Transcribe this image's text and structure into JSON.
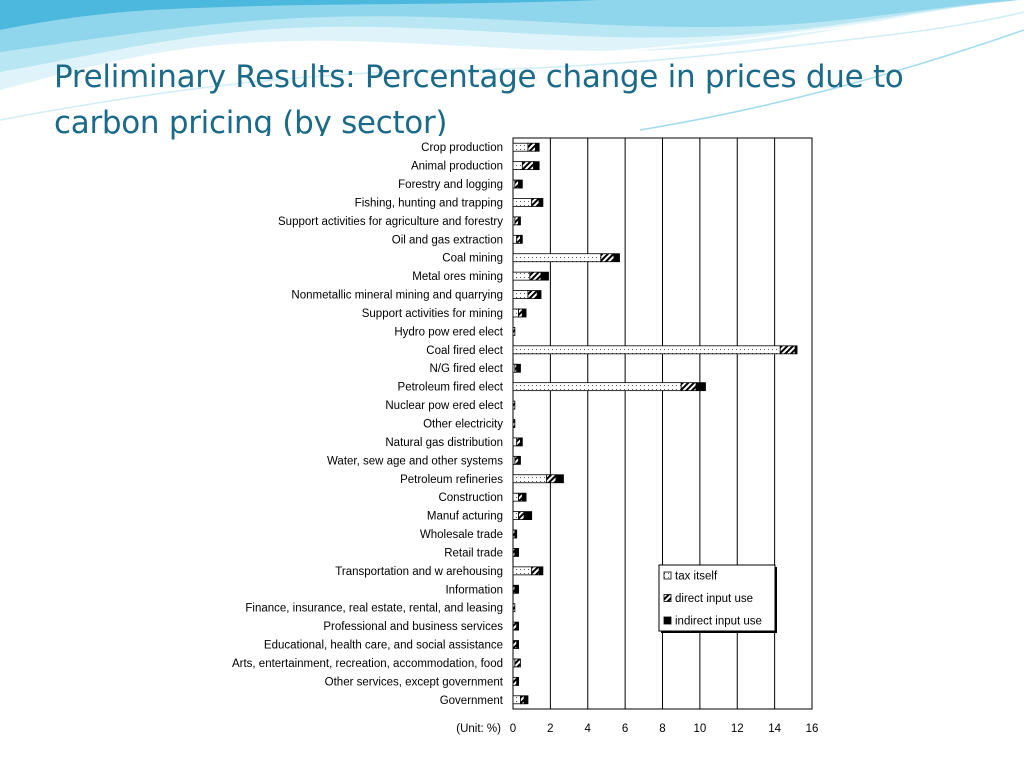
{
  "slide": {
    "title": "Preliminary Results: Percentage change in prices due to carbon pricing  (by sector)"
  },
  "colors": {
    "title": "#1c6a8a",
    "wave_light": "#cfeef6",
    "wave_mid": "#7fcfe6",
    "wave_dark": "#2aa5cf"
  },
  "chart_data": {
    "type": "bar",
    "orientation": "horizontal",
    "stacked": true,
    "title": "",
    "xlabel": "",
    "ylabel": "",
    "unit_label": "(Unit: %)",
    "xlim": [
      0,
      16
    ],
    "x_ticks": [
      0,
      2,
      4,
      6,
      8,
      10,
      12,
      14,
      16
    ],
    "grid": "vertical",
    "legend_position": "bottom-right",
    "categories": [
      "Crop production",
      "Animal production",
      "Forestry and logging",
      "Fishing, hunting and trapping",
      "Support activities for agriculture and forestry",
      "Oil and gas extraction",
      "Coal mining",
      "Metal ores mining",
      "Nonmetallic mineral mining and quarrying",
      "Support activities for mining",
      "Hydro pow ered elect",
      "Coal fired elect",
      "N/G fired elect",
      "Petroleum fired elect",
      "Nuclear pow ered elect",
      "Other electricity",
      "Natural gas distribution",
      "Water, sew age and other systems",
      "Petroleum refineries",
      "Construction",
      "Manuf acturing",
      "Wholesale trade",
      "Retail trade",
      "Transportation and w arehousing",
      "Information",
      "Finance, insurance, real estate, rental, and leasing",
      "Professional and business services",
      "Educational, health care, and social assistance",
      "Arts, entertainment, recreation, accommodation, food",
      "Other services, except government",
      "Government"
    ],
    "series": [
      {
        "name": "tax itself",
        "pattern": "dotted",
        "values": [
          0.8,
          0.5,
          0.1,
          1.0,
          0.1,
          0.2,
          4.7,
          0.9,
          0.8,
          0.3,
          0.0,
          14.3,
          0.1,
          9.0,
          0.0,
          0.0,
          0.2,
          0.1,
          1.8,
          0.3,
          0.3,
          0.0,
          0.0,
          1.0,
          0.0,
          0.0,
          0.0,
          0.0,
          0.1,
          0.0,
          0.4
        ]
      },
      {
        "name": "direct input use",
        "pattern": "hatched",
        "values": [
          0.4,
          0.6,
          0.2,
          0.4,
          0.2,
          0.2,
          0.7,
          0.6,
          0.5,
          0.2,
          0.1,
          0.8,
          0.1,
          0.8,
          0.1,
          0.1,
          0.2,
          0.2,
          0.5,
          0.2,
          0.3,
          0.1,
          0.1,
          0.4,
          0.1,
          0.1,
          0.2,
          0.2,
          0.3,
          0.2,
          0.2
        ]
      },
      {
        "name": "indirect input use",
        "pattern": "solid",
        "values": [
          0.2,
          0.3,
          0.2,
          0.2,
          0.1,
          0.1,
          0.3,
          0.4,
          0.2,
          0.2,
          0.0,
          0.1,
          0.2,
          0.5,
          0.0,
          0.0,
          0.1,
          0.1,
          0.4,
          0.2,
          0.4,
          0.1,
          0.2,
          0.2,
          0.2,
          0.0,
          0.1,
          0.1,
          0.0,
          0.1,
          0.2
        ]
      }
    ]
  }
}
